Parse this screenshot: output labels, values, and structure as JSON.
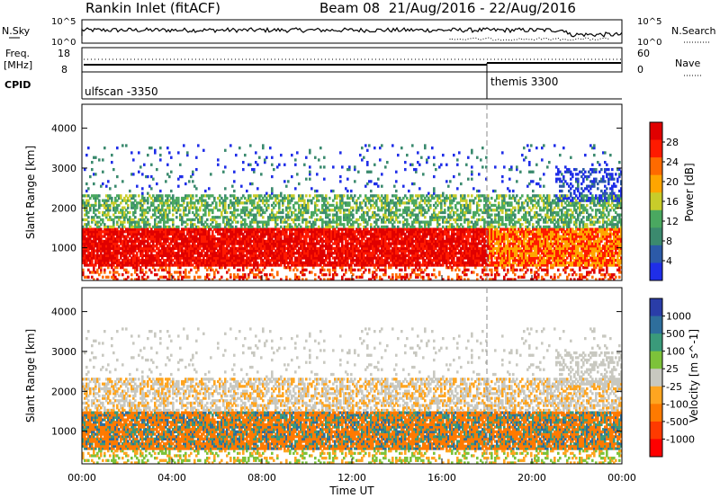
{
  "header": {
    "station": "Rankin Inlet (fitACF)",
    "beam_info": "Beam 08  21/Aug/2016 - 22/Aug/2016"
  },
  "noise_panel": {
    "left_label": "N.Sky",
    "left_ticks": [
      "10^5",
      "10^0"
    ],
    "right_label": "N.Search",
    "right_ticks": [
      "10^5",
      "10^0"
    ]
  },
  "freq_panel": {
    "left_label_1": "Freq.",
    "left_label_2": "[MHz]",
    "left_ticks": [
      "18",
      "8"
    ],
    "right_label": "Nave",
    "right_ticks": [
      "60",
      "0"
    ]
  },
  "cpid_panel": {
    "label": "CPID",
    "modes": [
      {
        "name": "ulfscan -3350",
        "start_hour": 0
      },
      {
        "name": "themis 3300",
        "start_hour": 18
      }
    ]
  },
  "colors": {
    "power": [
      "#1f2ee8",
      "#2c5aa8",
      "#3b8a6e",
      "#4aa860",
      "#c8cc2a",
      "#ffa500",
      "#ff6a00",
      "#ff1a00",
      "#e00000"
    ],
    "velocity": [
      "#2a3da8",
      "#2e6e9c",
      "#3a9a7a",
      "#7dc23a",
      "#c8c8c0",
      "#ffa520",
      "#ff7a00",
      "#ff3a00",
      "#ff0000"
    ],
    "noise_line": "#000000"
  },
  "chart_data": [
    {
      "type": "heatmap",
      "name": "power",
      "ylabel": "Slant Range [km]",
      "y_ticks": [
        "1000",
        "2000",
        "3000",
        "4000"
      ],
      "ylim": [
        180,
        4600
      ],
      "colorbar_label": "Power [dB]",
      "colorbar_ticks": [
        "4",
        "8",
        "12",
        "16",
        "20",
        "24",
        "28"
      ],
      "colorbar_range": [
        0,
        30
      ],
      "description_bands": [
        {
          "t_start": 0,
          "t_end": 18,
          "r_start": 500,
          "r_end": 1500,
          "value": 26
        },
        {
          "t_start": 0,
          "t_end": 18,
          "r_start": 1500,
          "r_end": 2300,
          "value": 12
        },
        {
          "t_start": 18,
          "t_end": 24,
          "r_start": 400,
          "r_end": 1300,
          "value": 22
        }
      ]
    },
    {
      "type": "heatmap",
      "name": "velocity",
      "xlabel": "Time UT",
      "ylabel": "Slant Range [km]",
      "y_ticks": [
        "1000",
        "2000",
        "3000",
        "4000"
      ],
      "ylim": [
        180,
        4600
      ],
      "x_ticks": [
        "00:00",
        "04:00",
        "08:00",
        "12:00",
        "16:00",
        "20:00",
        "00:00"
      ],
      "xlim": [
        0,
        24
      ],
      "colorbar_label": "Velocity [m s^-1]",
      "colorbar_ticks": [
        "1000",
        "500",
        "100",
        "25",
        "-25",
        "-100",
        "-500",
        "-1000"
      ]
    }
  ]
}
